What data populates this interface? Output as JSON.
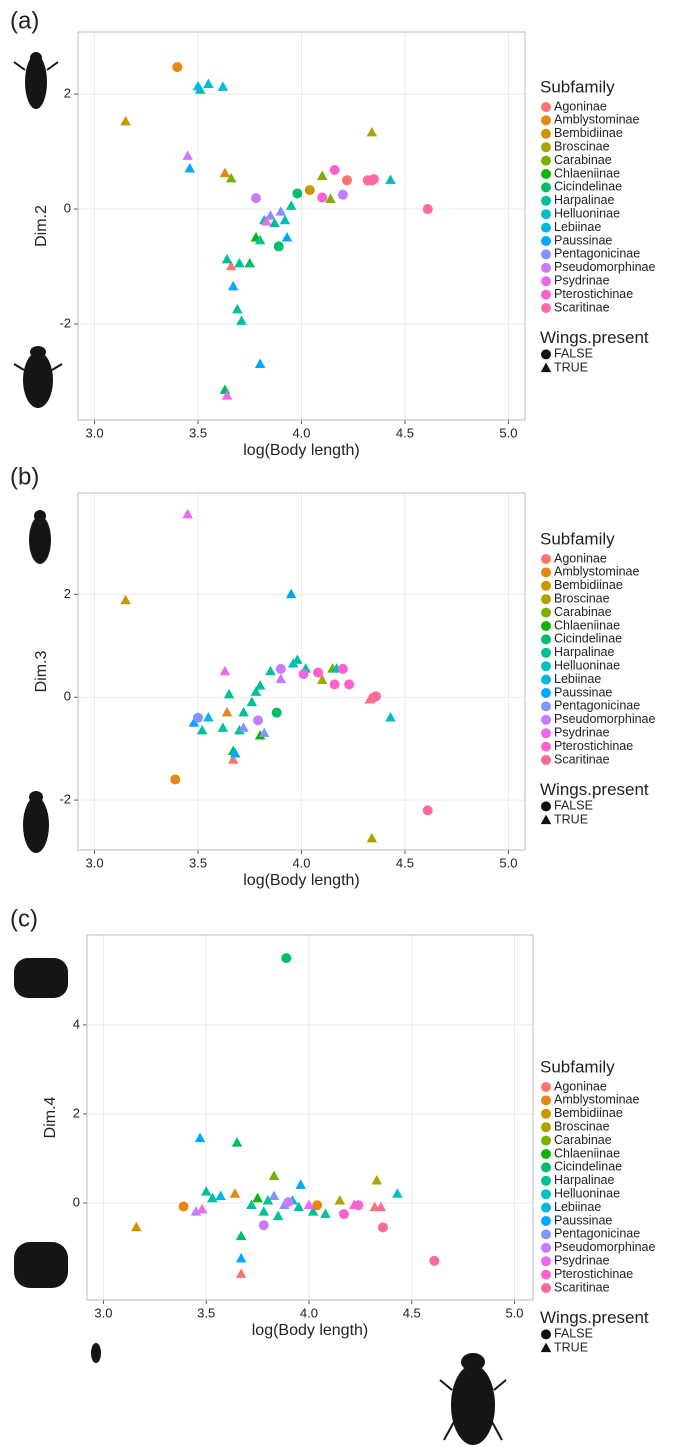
{
  "chart_data": [
    {
      "type": "scatter",
      "panel": "(a)",
      "x_label": "log(Body length)",
      "y_label": "Dim.2",
      "xlim": [
        2.92,
        5.08
      ],
      "ylim": [
        -3.67,
        3.08
      ],
      "xticks": [
        {
          "value": 3,
          "label": "3.0"
        },
        {
          "value": 3.5,
          "label": "3.5"
        },
        {
          "value": 4,
          "label": "4.0"
        },
        {
          "value": 4.5,
          "label": "4.5"
        },
        {
          "value": 5,
          "label": "5.0"
        }
      ],
      "yticks": [
        -2,
        0,
        2
      ],
      "grid": true,
      "legend_title": "Subfamily",
      "shape_title": "Wings.present",
      "shape_labels": [
        "FALSE",
        "TRUE"
      ],
      "series": [
        {
          "name": "Agoninae",
          "color": "#F8766D",
          "x": [
            3.66,
            4.22
          ],
          "values": [
            -1.0,
            0.5
          ],
          "wings": [
            true,
            false
          ]
        },
        {
          "name": "Amblystominae",
          "color": "#E68613",
          "x": [
            3.4,
            3.63
          ],
          "values": [
            2.47,
            0.62
          ],
          "wings": [
            false,
            true
          ]
        },
        {
          "name": "Bembidiinae",
          "color": "#CD9600",
          "x": [
            3.15,
            4.04
          ],
          "values": [
            1.52,
            0.33
          ],
          "wings": [
            true,
            false
          ]
        },
        {
          "name": "Broscinae",
          "color": "#ABA300",
          "x": [
            4.34
          ],
          "values": [
            1.33
          ],
          "wings": [
            true
          ]
        },
        {
          "name": "Carabinae",
          "color": "#7CAE00",
          "x": [
            3.66,
            4.1,
            4.14
          ],
          "values": [
            0.53,
            0.57,
            0.17
          ],
          "wings": [
            true,
            true,
            true
          ]
        },
        {
          "name": "Chlaeniinae",
          "color": "#0CB702",
          "x": [
            3.78
          ],
          "values": [
            -0.5
          ],
          "wings": [
            true
          ]
        },
        {
          "name": "Cicindelinae",
          "color": "#00BE67",
          "x": [
            3.98,
            3.89,
            3.63,
            3.75
          ],
          "values": [
            0.27,
            -0.65,
            -3.15,
            -0.95
          ],
          "wings": [
            false,
            false,
            true,
            true
          ]
        },
        {
          "name": "Harpalinae",
          "color": "#00C19A",
          "x": [
            3.51,
            3.8,
            3.82,
            3.87,
            3.7,
            3.64,
            3.69,
            3.71,
            3.95
          ],
          "values": [
            2.07,
            -0.55,
            -0.2,
            -0.25,
            -0.95,
            -0.88,
            -1.75,
            -1.95,
            0.05
          ],
          "wings": [
            true,
            true,
            true,
            true,
            true,
            true,
            true,
            true,
            true
          ]
        },
        {
          "name": "Helluoninae",
          "color": "#00BFC4",
          "x": [
            4.43,
            3.92
          ],
          "values": [
            0.5,
            -0.2
          ],
          "wings": [
            true,
            true
          ]
        },
        {
          "name": "Lebiinae",
          "color": "#00B8E7",
          "x": [
            3.5,
            3.55,
            3.62
          ],
          "values": [
            2.13,
            2.17,
            2.12
          ],
          "wings": [
            true,
            true,
            true
          ]
        },
        {
          "name": "Paussinae",
          "color": "#00A9FF",
          "x": [
            3.46,
            3.93,
            3.67,
            3.8
          ],
          "values": [
            0.7,
            -0.5,
            -1.35,
            -2.7
          ],
          "wings": [
            true,
            true,
            true,
            true
          ]
        },
        {
          "name": "Pentagonicinae",
          "color": "#8494FF",
          "x": [
            3.9,
            3.85
          ],
          "values": [
            -0.05,
            -0.12
          ],
          "wings": [
            true,
            true
          ]
        },
        {
          "name": "Pseudomorphinae",
          "color": "#C77CFF",
          "x": [
            3.45,
            3.78,
            4.2
          ],
          "values": [
            0.92,
            0.19,
            0.25
          ],
          "wings": [
            true,
            false,
            false
          ]
        },
        {
          "name": "Psydrinae",
          "color": "#ED68ED",
          "x": [
            3.64,
            3.83
          ],
          "values": [
            -3.25,
            -0.22
          ],
          "wings": [
            true,
            true
          ]
        },
        {
          "name": "Pterostichinae",
          "color": "#FF61CC",
          "x": [
            4.16,
            4.1,
            4.33
          ],
          "values": [
            0.68,
            0.2,
            0.48
          ],
          "wings": [
            false,
            false,
            true
          ]
        },
        {
          "name": "Scaritinae",
          "color": "#FF68A1",
          "x": [
            4.32,
            4.35,
            4.61
          ],
          "values": [
            0.5,
            0.52,
            0.0
          ],
          "wings": [
            false,
            false,
            false
          ]
        }
      ]
    },
    {
      "type": "scatter",
      "panel": "(b)",
      "x_label": "log(Body length)",
      "y_label": "Dim.3",
      "xlim": [
        2.92,
        5.08
      ],
      "ylim": [
        -2.97,
        3.97
      ],
      "xticks": [
        {
          "value": 3,
          "label": "3.0"
        },
        {
          "value": 3.5,
          "label": "3.5"
        },
        {
          "value": 4,
          "label": "4.0"
        },
        {
          "value": 4.5,
          "label": "4.5"
        },
        {
          "value": 5,
          "label": "5.0"
        }
      ],
      "yticks": [
        -2,
        0,
        2
      ],
      "grid": true,
      "legend_title": "Subfamily",
      "shape_title": "Wings.present",
      "shape_labels": [
        "FALSE",
        "TRUE"
      ],
      "series": [
        {
          "name": "Agoninae",
          "color": "#F8766D",
          "x": [
            3.67,
            4.33
          ],
          "values": [
            -1.22,
            -0.05
          ],
          "wings": [
            true,
            true
          ]
        },
        {
          "name": "Amblystominae",
          "color": "#E68613",
          "x": [
            3.39,
            3.64
          ],
          "values": [
            -1.6,
            -0.3
          ],
          "wings": [
            false,
            true
          ]
        },
        {
          "name": "Bembidiinae",
          "color": "#CD9600",
          "x": [
            3.15
          ],
          "values": [
            1.88
          ],
          "wings": [
            true
          ]
        },
        {
          "name": "Broscinae",
          "color": "#ABA300",
          "x": [
            4.34,
            4.1
          ],
          "values": [
            -2.75,
            0.33
          ],
          "wings": [
            true,
            true
          ]
        },
        {
          "name": "Carabinae",
          "color": "#7CAE00",
          "x": [
            4.15
          ],
          "values": [
            0.55
          ],
          "wings": [
            true
          ]
        },
        {
          "name": "Chlaeniinae",
          "color": "#0CB702",
          "x": [
            3.8
          ],
          "values": [
            -0.75
          ],
          "wings": [
            true
          ]
        },
        {
          "name": "Cicindelinae",
          "color": "#00BE67",
          "x": [
            3.88,
            3.67
          ],
          "values": [
            -0.3,
            -1.05
          ],
          "wings": [
            false,
            true
          ]
        },
        {
          "name": "Harpalinae",
          "color": "#00C19A",
          "x": [
            3.65,
            3.72,
            3.76,
            3.78,
            3.8,
            3.85,
            3.98,
            4.02,
            3.7,
            3.52,
            3.62
          ],
          "values": [
            0.05,
            -0.3,
            -0.1,
            0.1,
            0.22,
            0.5,
            0.72,
            0.55,
            -0.65,
            -0.65,
            -0.6
          ],
          "wings": [
            true,
            true,
            true,
            true,
            true,
            true,
            true,
            true,
            true,
            true,
            true
          ]
        },
        {
          "name": "Helluoninae",
          "color": "#00BFC4",
          "x": [
            4.43,
            3.96,
            4.17
          ],
          "values": [
            -0.4,
            0.65,
            0.55
          ],
          "wings": [
            true,
            true,
            true
          ]
        },
        {
          "name": "Lebiinae",
          "color": "#00B8E7",
          "x": [
            3.55
          ],
          "values": [
            -0.4
          ],
          "wings": [
            true
          ]
        },
        {
          "name": "Paussinae",
          "color": "#00A9FF",
          "x": [
            3.95,
            3.48,
            3.68
          ],
          "values": [
            2.0,
            -0.5,
            -1.1
          ],
          "wings": [
            true,
            true,
            true
          ]
        },
        {
          "name": "Pentagonicinae",
          "color": "#8494FF",
          "x": [
            3.5,
            3.82,
            3.72
          ],
          "values": [
            -0.4,
            -0.7,
            -0.6
          ],
          "wings": [
            false,
            true,
            true
          ]
        },
        {
          "name": "Pseudomorphinae",
          "color": "#C77CFF",
          "x": [
            3.79,
            3.9,
            3.9
          ],
          "values": [
            -0.45,
            0.55,
            0.35
          ],
          "wings": [
            false,
            false,
            true
          ]
        },
        {
          "name": "Psydrinae",
          "color": "#ED68ED",
          "x": [
            3.45,
            3.63,
            4.01
          ],
          "values": [
            3.55,
            0.5,
            0.45
          ],
          "wings": [
            true,
            true,
            false
          ]
        },
        {
          "name": "Pterostichinae",
          "color": "#FF61CC",
          "x": [
            4.08,
            4.16,
            4.23,
            4.2
          ],
          "values": [
            0.48,
            0.25,
            0.25,
            0.55
          ],
          "wings": [
            false,
            false,
            false,
            false
          ]
        },
        {
          "name": "Scaritinae",
          "color": "#FF68A1",
          "x": [
            4.61,
            4.35,
            4.36
          ],
          "values": [
            -2.2,
            0.0,
            0.02
          ],
          "wings": [
            false,
            false,
            false
          ]
        }
      ]
    },
    {
      "type": "scatter",
      "panel": "(c)",
      "x_label": "log(Body length)",
      "y_label": "Dim.4",
      "xlim": [
        2.92,
        5.09
      ],
      "ylim": [
        -2.18,
        6.02
      ],
      "xticks": [
        {
          "value": 3,
          "label": "3.0"
        },
        {
          "value": 3.5,
          "label": "3.5"
        },
        {
          "value": 4,
          "label": "4.0"
        },
        {
          "value": 4.5,
          "label": "4.5"
        },
        {
          "value": 5,
          "label": "5.0"
        }
      ],
      "yticks": [
        0,
        2,
        4
      ],
      "grid": true,
      "legend_title": "Subfamily",
      "shape_title": "Wings.present",
      "shape_labels": [
        "FALSE",
        "TRUE"
      ],
      "series": [
        {
          "name": "Agoninae",
          "color": "#F8766D",
          "x": [
            3.67,
            4.32
          ],
          "values": [
            -1.6,
            -0.1
          ],
          "wings": [
            true,
            true
          ]
        },
        {
          "name": "Amblystominae",
          "color": "#E68613",
          "x": [
            3.39,
            3.64,
            4.04
          ],
          "values": [
            -0.08,
            0.2,
            -0.05
          ],
          "wings": [
            false,
            true,
            false
          ]
        },
        {
          "name": "Bembidiinae",
          "color": "#CD9600",
          "x": [
            3.16
          ],
          "values": [
            -0.55
          ],
          "wings": [
            true
          ]
        },
        {
          "name": "Broscinae",
          "color": "#ABA300",
          "x": [
            4.33,
            4.15
          ],
          "values": [
            0.5,
            0.05
          ],
          "wings": [
            true,
            true
          ]
        },
        {
          "name": "Carabinae",
          "color": "#7CAE00",
          "x": [
            3.83
          ],
          "values": [
            0.6
          ],
          "wings": [
            true
          ]
        },
        {
          "name": "Chlaeniinae",
          "color": "#0CB702",
          "x": [
            3.75
          ],
          "values": [
            0.1
          ],
          "wings": [
            true
          ]
        },
        {
          "name": "Cicindelinae",
          "color": "#00BE67",
          "x": [
            3.89,
            3.65,
            3.67
          ],
          "values": [
            5.5,
            1.35,
            -0.75
          ],
          "wings": [
            false,
            true,
            true
          ]
        },
        {
          "name": "Harpalinae",
          "color": "#00C19A",
          "x": [
            3.5,
            3.72,
            3.78,
            3.85,
            3.8,
            3.95,
            4.02,
            4.08,
            3.53
          ],
          "values": [
            0.25,
            -0.05,
            -0.2,
            -0.3,
            0.05,
            -0.1,
            -0.2,
            -0.25,
            0.1
          ],
          "wings": [
            true,
            true,
            true,
            true,
            true,
            true,
            true,
            true,
            true
          ]
        },
        {
          "name": "Helluoninae",
          "color": "#00BFC4",
          "x": [
            4.43,
            3.92
          ],
          "values": [
            0.2,
            0.05
          ],
          "wings": [
            true,
            true
          ]
        },
        {
          "name": "Lebiinae",
          "color": "#00B8E7",
          "x": [
            3.57
          ],
          "values": [
            0.15
          ],
          "wings": [
            true
          ]
        },
        {
          "name": "Paussinae",
          "color": "#00A9FF",
          "x": [
            3.47,
            3.96,
            3.67
          ],
          "values": [
            1.45,
            0.4,
            -1.25
          ],
          "wings": [
            true,
            true,
            true
          ]
        },
        {
          "name": "Pentagonicinae",
          "color": "#8494FF",
          "x": [
            3.83,
            3.88
          ],
          "values": [
            0.15,
            -0.05
          ],
          "wings": [
            true,
            true
          ]
        },
        {
          "name": "Pseudomorphinae",
          "color": "#C77CFF",
          "x": [
            3.45,
            3.78,
            3.9
          ],
          "values": [
            -0.2,
            -0.5,
            0.02
          ],
          "wings": [
            true,
            false,
            false
          ]
        },
        {
          "name": "Psydrinae",
          "color": "#ED68ED",
          "x": [
            3.48,
            4.0
          ],
          "values": [
            -0.15,
            -0.05
          ],
          "wings": [
            true,
            true
          ]
        },
        {
          "name": "Pterostichinae",
          "color": "#FF61CC",
          "x": [
            4.17,
            4.24,
            4.22
          ],
          "values": [
            -0.25,
            -0.05,
            -0.05
          ],
          "wings": [
            false,
            false,
            true
          ]
        },
        {
          "name": "Scaritinae",
          "color": "#FF68A1",
          "x": [
            4.61,
            4.36,
            4.35
          ],
          "values": [
            -1.3,
            -0.55,
            -0.1
          ],
          "wings": [
            false,
            false,
            true
          ]
        }
      ]
    }
  ]
}
